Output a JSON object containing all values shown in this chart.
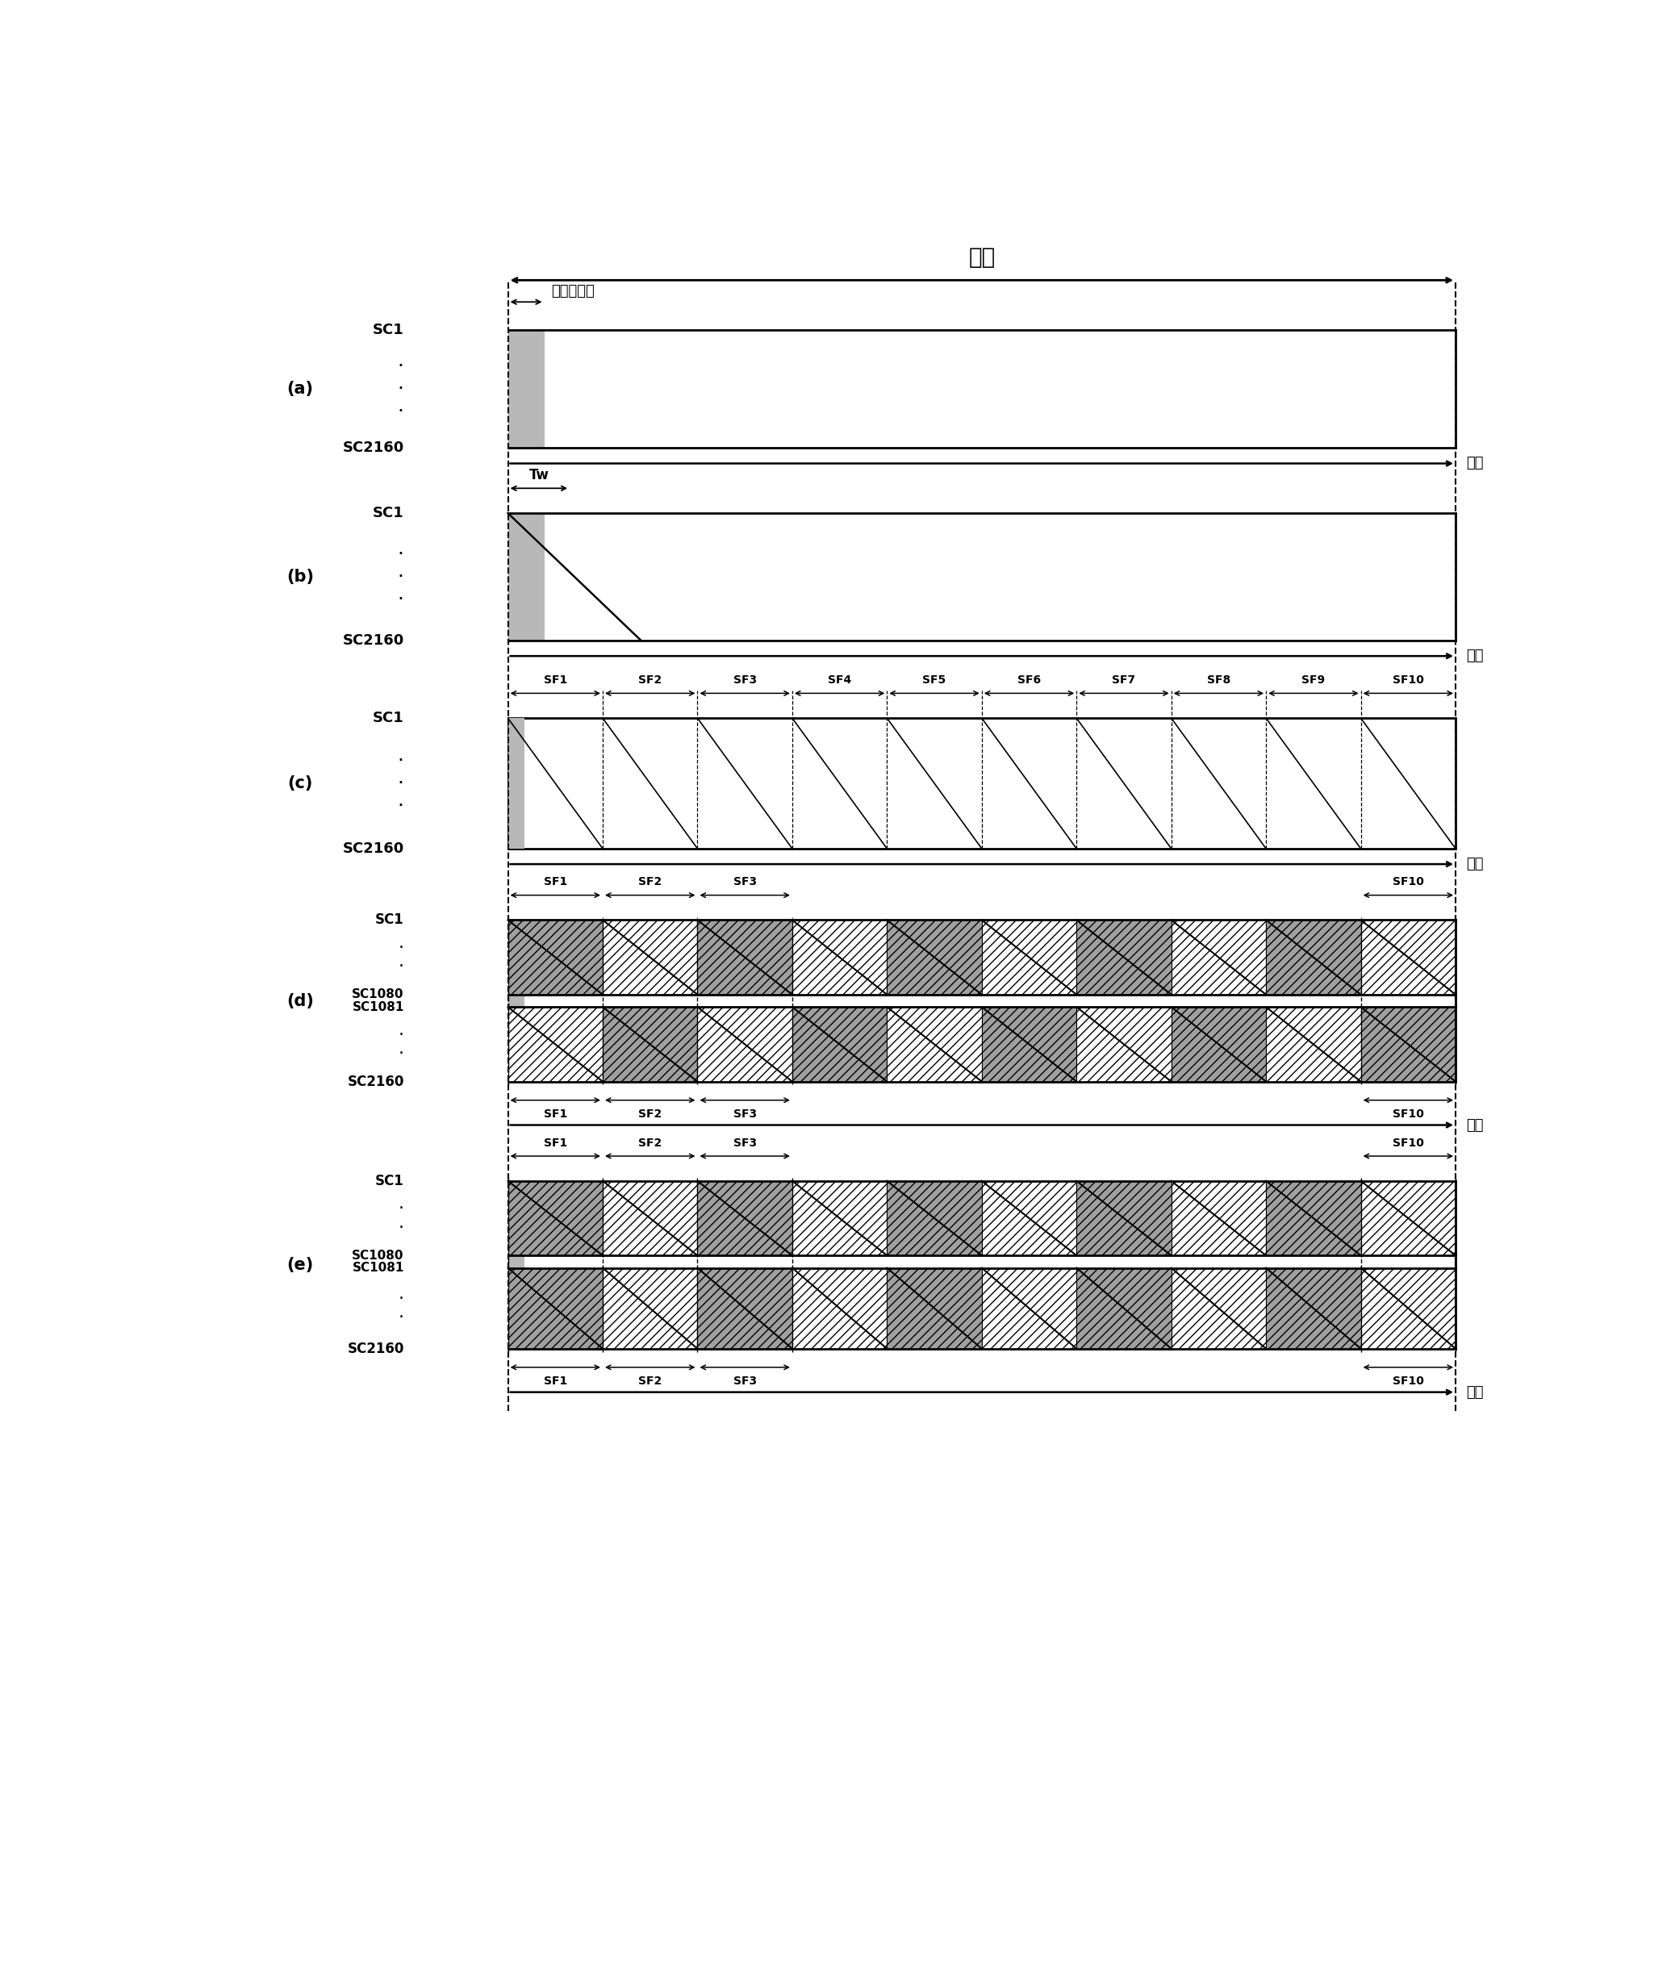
{
  "fig_width": 20.76,
  "fig_height": 24.58,
  "bg_color": "#ffffff",
  "title_one_field": "一场",
  "label_format_period": "格式化期间",
  "label_tw": "Tw",
  "label_time": "时间",
  "label_sc1": "SC1",
  "label_sc2160": "SC2160",
  "label_sc1080": "SC1080",
  "label_sc1081": "SC1081",
  "sections": [
    "(a)",
    "(b)",
    "(c)",
    "(d)",
    "(e)"
  ],
  "sf_labels": [
    "SF1",
    "SF2",
    "SF3",
    "SF4",
    "SF5",
    "SF6",
    "SF7",
    "SF8",
    "SF9",
    "SF10"
  ],
  "sf_labels_short": [
    "SF1",
    "SF2",
    "SF3",
    "SF10"
  ],
  "dark_fill": "#a0a0a0",
  "hatch_fill": "#c8c8c8",
  "light_fill": "#ffffff"
}
